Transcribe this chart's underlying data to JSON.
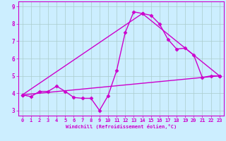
{
  "xlabel": "Windchill (Refroidissement éolien,°C)",
  "background_color": "#cceeff",
  "line_color": "#cc00cc",
  "grid_color": "#aacccc",
  "xlim": [
    -0.5,
    23.5
  ],
  "ylim": [
    2.7,
    9.3
  ],
  "yticks": [
    3,
    4,
    5,
    6,
    7,
    8,
    9
  ],
  "xticks": [
    0,
    1,
    2,
    3,
    4,
    5,
    6,
    7,
    8,
    9,
    10,
    11,
    12,
    13,
    14,
    15,
    16,
    17,
    18,
    19,
    20,
    21,
    22,
    23
  ],
  "curve1_x": [
    0,
    1,
    2,
    3,
    4,
    5,
    6,
    7,
    8,
    9,
    10,
    11,
    12,
    13,
    14,
    15,
    16,
    17,
    18,
    19,
    20,
    21,
    22,
    23
  ],
  "curve1_y": [
    3.9,
    3.8,
    4.1,
    4.1,
    4.4,
    4.1,
    3.75,
    3.7,
    3.7,
    3.0,
    3.85,
    5.3,
    7.5,
    8.7,
    8.6,
    8.5,
    8.0,
    7.1,
    6.55,
    6.6,
    6.2,
    4.9,
    5.0,
    5.0
  ],
  "curve2_x": [
    0,
    23
  ],
  "curve2_y": [
    3.9,
    5.0
  ],
  "curve3_x": [
    0,
    14,
    23
  ],
  "curve3_y": [
    3.9,
    8.6,
    5.0
  ],
  "marker": "D",
  "markersize": 2.5,
  "linewidth": 1.0
}
